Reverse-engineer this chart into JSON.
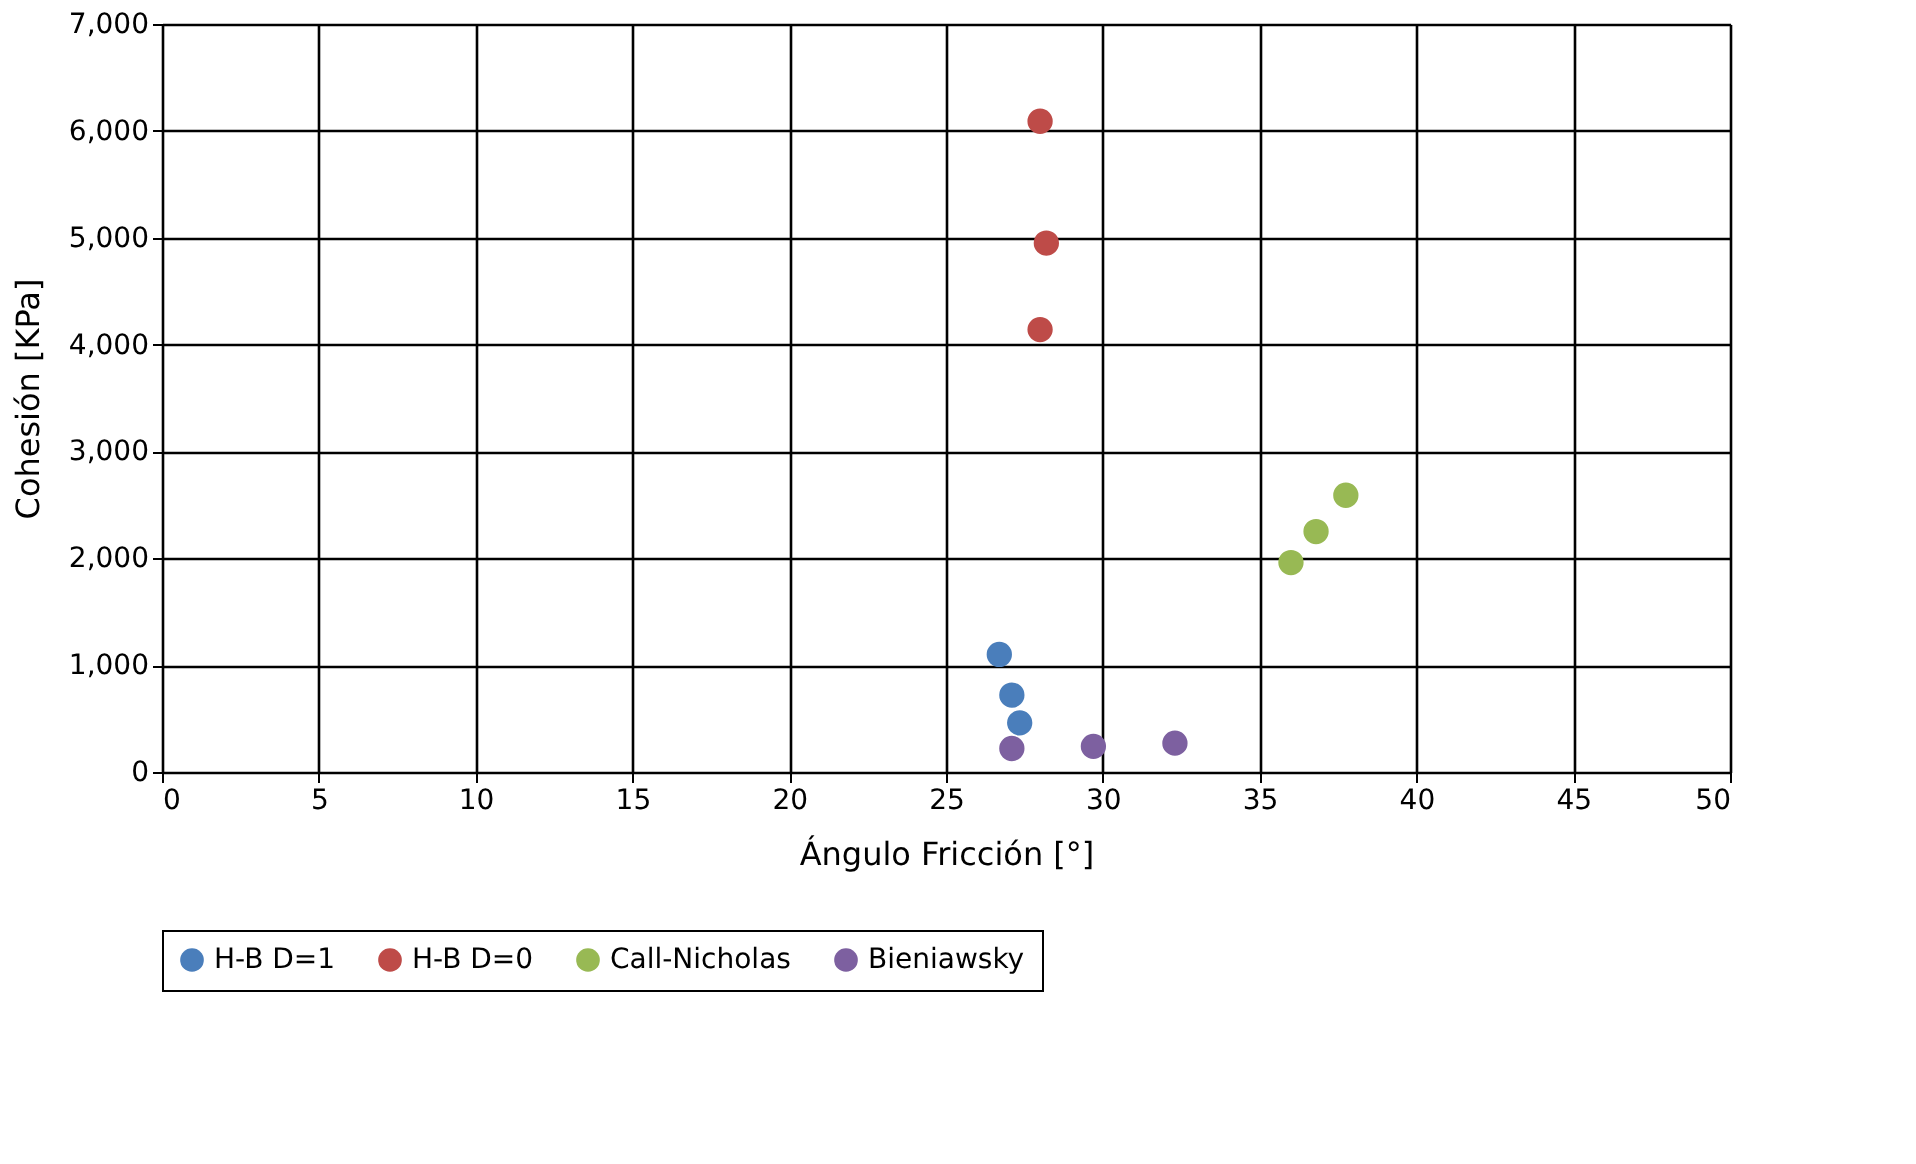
{
  "chart_data": {
    "type": "scatter",
    "xlabel": "Ángulo Fricción [°]",
    "ylabel": "Cohesión [KPa]",
    "xlim": [
      0,
      50
    ],
    "xticks": [
      0,
      5,
      10,
      15,
      20,
      25,
      30,
      35,
      40,
      45,
      50
    ],
    "ylim": [
      0,
      7000
    ],
    "yticks": [
      {
        "value": 0,
        "label": "0"
      },
      {
        "value": 1000,
        "label": "1,000"
      },
      {
        "value": 2000,
        "label": "2,000"
      },
      {
        "value": 3000,
        "label": "3,000"
      },
      {
        "value": 4000,
        "label": "4,000"
      },
      {
        "value": 5000,
        "label": "5,000"
      },
      {
        "value": 6000,
        "label": "6,000"
      },
      {
        "value": 7000,
        "label": "7,000"
      }
    ],
    "grid": true,
    "legend": "bottom",
    "marker": "circle",
    "series": [
      {
        "name": "H-B D=1",
        "color": "#4a7ebb",
        "x": [
          26.7,
          27.1,
          27.35
        ],
        "values": [
          1100,
          720,
          460
        ]
      },
      {
        "name": "H-B D=0",
        "color": "#be4b48",
        "x": [
          28.0,
          28.2,
          28.0
        ],
        "values": [
          6090,
          4950,
          4140
        ]
      },
      {
        "name": "Call-Nicholas",
        "color": "#98b954",
        "x": [
          36.0,
          36.8,
          37.75
        ],
        "values": [
          1960,
          2250,
          2590
        ]
      },
      {
        "name": "Bieniawsky",
        "color": "#7d60a0",
        "x": [
          27.1,
          29.7,
          32.3
        ],
        "values": [
          220,
          240,
          270
        ]
      }
    ]
  }
}
